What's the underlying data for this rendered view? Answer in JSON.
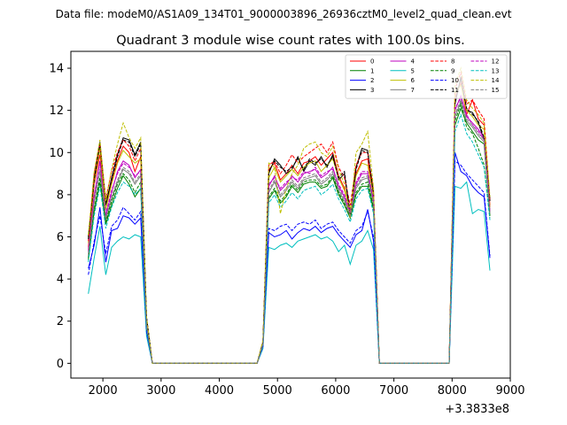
{
  "figure": {
    "suptitle": "Data file: modeM0/AS1A09_134T01_9000003896_26936cztM0_level2_quad_clean.evt"
  },
  "chart_data": {
    "type": "line",
    "title": "Quadrant 3 module wise count rates with 100.0s bins.",
    "xlabel": "",
    "ylabel": "",
    "x_offset_label": "+3.3833e8",
    "xlim": [
      1450,
      9000
    ],
    "ylim": [
      -0.7,
      14.8
    ],
    "xticks": [
      2000,
      3000,
      4000,
      5000,
      6000,
      7000,
      8000,
      9000
    ],
    "yticks": [
      0,
      2,
      4,
      6,
      8,
      10,
      12,
      14
    ],
    "grid": false,
    "legend_position": "top-right",
    "legend_columns": 4,
    "x": [
      1750,
      1850,
      1950,
      2050,
      2150,
      2250,
      2350,
      2450,
      2550,
      2650,
      2750,
      2850,
      2950,
      3050,
      3150,
      3250,
      3350,
      3450,
      3550,
      3650,
      3750,
      3850,
      3950,
      4050,
      4150,
      4250,
      4350,
      4450,
      4550,
      4650,
      4750,
      4850,
      4950,
      5050,
      5150,
      5250,
      5350,
      5450,
      5550,
      5650,
      5750,
      5850,
      5950,
      6050,
      6150,
      6250,
      6350,
      6450,
      6550,
      6650,
      6750,
      6850,
      6950,
      7050,
      7150,
      7250,
      7350,
      7450,
      7550,
      7650,
      7750,
      7850,
      7950,
      8050,
      8150,
      8250,
      8350,
      8450,
      8550,
      8650
    ],
    "series": [
      {
        "name": "0",
        "color": "#ff0000",
        "dash": false,
        "values": [
          5.5,
          8.5,
          9.9,
          7.5,
          8.6,
          9.6,
          10.3,
          10.0,
          9.1,
          9.8,
          2.0,
          0,
          0,
          0,
          0,
          0,
          0,
          0,
          0,
          0,
          0,
          0,
          0,
          0,
          0,
          0,
          0,
          0,
          0,
          0,
          1.0,
          9.2,
          9.5,
          8.7,
          9.0,
          9.4,
          9.0,
          9.5,
          9.6,
          9.8,
          9.4,
          9.7,
          10.0,
          8.9,
          8.3,
          7.2,
          9.0,
          9.6,
          9.7,
          7.9,
          0,
          0,
          0,
          0,
          0,
          0,
          0,
          0,
          0,
          0,
          0,
          0,
          0,
          12.6,
          13.3,
          11.8,
          12.5,
          11.6,
          11.3,
          7.5
        ]
      },
      {
        "name": "1",
        "color": "#008000",
        "dash": false,
        "values": [
          5.0,
          7.2,
          8.6,
          6.6,
          7.5,
          8.3,
          8.9,
          8.5,
          7.9,
          8.3,
          1.7,
          0,
          0,
          0,
          0,
          0,
          0,
          0,
          0,
          0,
          0,
          0,
          0,
          0,
          0,
          0,
          0,
          0,
          0,
          0,
          0.9,
          7.8,
          8.2,
          7.6,
          7.9,
          8.4,
          8.1,
          8.5,
          8.6,
          8.6,
          8.3,
          8.4,
          8.8,
          8.0,
          7.5,
          6.9,
          8.0,
          8.4,
          8.4,
          7.3,
          0,
          0,
          0,
          0,
          0,
          0,
          0,
          0,
          0,
          0,
          0,
          0,
          0,
          11.3,
          12.1,
          11.4,
          11.0,
          10.6,
          10.4,
          7.0
        ]
      },
      {
        "name": "2",
        "color": "#0000ff",
        "dash": false,
        "values": [
          4.5,
          5.6,
          7.4,
          4.8,
          6.3,
          6.4,
          7.0,
          6.9,
          6.6,
          6.9,
          1.5,
          0,
          0,
          0,
          0,
          0,
          0,
          0,
          0,
          0,
          0,
          0,
          0,
          0,
          0,
          0,
          0,
          0,
          0,
          0,
          0.8,
          6.2,
          6.0,
          6.1,
          6.3,
          5.9,
          6.2,
          6.4,
          6.3,
          6.5,
          6.2,
          6.4,
          6.5,
          6.1,
          5.8,
          5.5,
          6.1,
          6.3,
          7.3,
          5.8,
          0,
          0,
          0,
          0,
          0,
          0,
          0,
          0,
          0,
          0,
          0,
          0,
          0,
          10.0,
          9.1,
          8.9,
          8.4,
          8.1,
          7.9,
          5.0
        ]
      },
      {
        "name": "3",
        "color": "#000000",
        "dash": false,
        "values": [
          6.0,
          8.8,
          10.5,
          7.5,
          8.8,
          9.9,
          10.7,
          10.6,
          9.9,
          10.5,
          2.2,
          0,
          0,
          0,
          0,
          0,
          0,
          0,
          0,
          0,
          0,
          0,
          0,
          0,
          0,
          0,
          0,
          0,
          0,
          0,
          1.0,
          9.0,
          9.7,
          9.4,
          9.0,
          9.2,
          9.8,
          9.1,
          9.6,
          9.4,
          9.8,
          9.3,
          9.9,
          8.7,
          9.0,
          7.0,
          9.3,
          10.2,
          10.1,
          8.0,
          0,
          0,
          0,
          0,
          0,
          0,
          0,
          0,
          0,
          0,
          0,
          0,
          0,
          12.3,
          13.6,
          12.0,
          11.9,
          11.4,
          10.6,
          7.8
        ]
      },
      {
        "name": "4",
        "color": "#bf00bf",
        "dash": false,
        "values": [
          5.3,
          7.9,
          9.6,
          7.0,
          8.1,
          9.1,
          9.6,
          9.4,
          8.8,
          9.2,
          1.9,
          0,
          0,
          0,
          0,
          0,
          0,
          0,
          0,
          0,
          0,
          0,
          0,
          0,
          0,
          0,
          0,
          0,
          0,
          0,
          0.9,
          8.4,
          8.9,
          8.2,
          8.5,
          8.9,
          8.6,
          9.0,
          9.1,
          9.2,
          8.8,
          9.0,
          9.3,
          8.4,
          7.9,
          7.1,
          8.5,
          9.0,
          9.0,
          7.7,
          0,
          0,
          0,
          0,
          0,
          0,
          0,
          0,
          0,
          0,
          0,
          0,
          0,
          12.0,
          12.7,
          11.7,
          11.4,
          11.1,
          10.7,
          7.2
        ]
      },
      {
        "name": "5",
        "color": "#00bfbf",
        "dash": false,
        "values": [
          3.3,
          5.0,
          6.5,
          4.2,
          5.5,
          5.8,
          6.0,
          5.9,
          6.1,
          6.0,
          1.3,
          0,
          0,
          0,
          0,
          0,
          0,
          0,
          0,
          0,
          0,
          0,
          0,
          0,
          0,
          0,
          0,
          0,
          0,
          0,
          0.7,
          5.5,
          5.4,
          5.6,
          5.7,
          5.5,
          5.8,
          5.9,
          6.0,
          6.1,
          5.9,
          6.0,
          5.8,
          5.3,
          5.6,
          4.7,
          5.6,
          5.8,
          6.3,
          5.4,
          0,
          0,
          0,
          0,
          0,
          0,
          0,
          0,
          0,
          0,
          0,
          0,
          0,
          8.4,
          8.3,
          8.6,
          7.1,
          7.3,
          7.2,
          4.4
        ]
      },
      {
        "name": "6",
        "color": "#bfbf00",
        "dash": false,
        "values": [
          5.7,
          8.6,
          10.2,
          7.3,
          8.5,
          9.5,
          10.1,
          9.8,
          9.5,
          9.7,
          2.1,
          0,
          0,
          0,
          0,
          0,
          0,
          0,
          0,
          0,
          0,
          0,
          0,
          0,
          0,
          0,
          0,
          0,
          0,
          0,
          1.0,
          8.8,
          9.3,
          8.6,
          8.9,
          9.2,
          8.9,
          9.3,
          9.5,
          9.6,
          9.1,
          9.4,
          9.7,
          8.8,
          8.2,
          7.3,
          8.9,
          9.5,
          9.4,
          7.9,
          0,
          0,
          0,
          0,
          0,
          0,
          0,
          0,
          0,
          0,
          0,
          0,
          0,
          12.8,
          13.2,
          12.0,
          11.7,
          11.3,
          11.1,
          7.4
        ]
      },
      {
        "name": "7",
        "color": "#808080",
        "dash": false,
        "values": [
          5.1,
          7.6,
          9.1,
          6.8,
          7.8,
          8.6,
          9.2,
          9.0,
          8.5,
          8.9,
          1.8,
          0,
          0,
          0,
          0,
          0,
          0,
          0,
          0,
          0,
          0,
          0,
          0,
          0,
          0,
          0,
          0,
          0,
          0,
          0,
          0.9,
          8.1,
          8.6,
          7.9,
          8.2,
          8.6,
          8.3,
          8.7,
          8.8,
          8.9,
          8.5,
          8.7,
          9.0,
          8.2,
          7.7,
          7.0,
          8.3,
          8.7,
          8.8,
          7.5,
          0,
          0,
          0,
          0,
          0,
          0,
          0,
          0,
          0,
          0,
          0,
          0,
          0,
          11.7,
          12.4,
          11.5,
          11.2,
          10.8,
          10.5,
          7.1
        ]
      },
      {
        "name": "8",
        "color": "#ff0000",
        "dash": true,
        "values": [
          5.8,
          9.0,
          10.4,
          7.8,
          9.1,
          10.0,
          10.6,
          10.3,
          9.6,
          10.2,
          2.1,
          0,
          0,
          0,
          0,
          0,
          0,
          0,
          0,
          0,
          0,
          0,
          0,
          0,
          0,
          0,
          0,
          0,
          0,
          0,
          1.0,
          9.4,
          9.6,
          9.0,
          9.4,
          9.9,
          9.5,
          9.8,
          10.0,
          10.2,
          10.4,
          10.0,
          10.5,
          9.3,
          8.8,
          7.5,
          9.4,
          10.0,
          10.0,
          8.2,
          0,
          0,
          0,
          0,
          0,
          0,
          0,
          0,
          0,
          0,
          0,
          0,
          0,
          13.0,
          13.8,
          12.3,
          12.5,
          12.0,
          11.6,
          7.7
        ]
      },
      {
        "name": "9",
        "color": "#008000",
        "dash": true,
        "values": [
          4.9,
          7.3,
          8.8,
          6.7,
          7.7,
          8.5,
          9.0,
          8.7,
          8.1,
          8.6,
          1.7,
          0,
          0,
          0,
          0,
          0,
          0,
          0,
          0,
          0,
          0,
          0,
          0,
          0,
          0,
          0,
          0,
          0,
          0,
          0,
          0.9,
          7.9,
          8.3,
          7.7,
          8.0,
          8.5,
          8.2,
          8.6,
          8.7,
          8.7,
          8.4,
          8.5,
          8.9,
          8.1,
          7.6,
          6.9,
          8.1,
          8.5,
          8.6,
          7.4,
          0,
          0,
          0,
          0,
          0,
          0,
          0,
          0,
          0,
          0,
          0,
          0,
          0,
          11.5,
          12.3,
          11.2,
          10.9,
          10.2,
          9.4,
          6.9
        ]
      },
      {
        "name": "10",
        "color": "#0000ff",
        "dash": true,
        "values": [
          4.2,
          5.8,
          7.0,
          5.2,
          6.5,
          6.8,
          7.4,
          7.1,
          6.8,
          7.2,
          1.5,
          0,
          0,
          0,
          0,
          0,
          0,
          0,
          0,
          0,
          0,
          0,
          0,
          0,
          0,
          0,
          0,
          0,
          0,
          0,
          0.8,
          6.4,
          6.3,
          6.5,
          6.6,
          6.3,
          6.6,
          6.7,
          6.6,
          6.8,
          6.4,
          6.6,
          6.7,
          6.3,
          6.0,
          5.7,
          6.3,
          6.5,
          7.2,
          6.0,
          0,
          0,
          0,
          0,
          0,
          0,
          0,
          0,
          0,
          0,
          0,
          0,
          0,
          9.6,
          9.4,
          9.0,
          8.7,
          8.4,
          8.1,
          5.1
        ]
      },
      {
        "name": "11",
        "color": "#000000",
        "dash": true,
        "values": [
          5.9,
          8.7,
          10.4,
          7.6,
          8.7,
          9.8,
          10.6,
          10.5,
          9.8,
          10.4,
          2.2,
          0,
          0,
          0,
          0,
          0,
          0,
          0,
          0,
          0,
          0,
          0,
          0,
          0,
          0,
          0,
          0,
          0,
          0,
          0,
          1.0,
          9.1,
          9.6,
          9.3,
          9.1,
          9.3,
          9.7,
          9.2,
          9.7,
          9.5,
          9.7,
          9.4,
          9.8,
          8.8,
          9.1,
          7.1,
          9.2,
          10.1,
          10.0,
          8.1,
          0,
          0,
          0,
          0,
          0,
          0,
          0,
          0,
          0,
          0,
          0,
          0,
          0,
          12.4,
          13.5,
          12.1,
          11.8,
          11.5,
          10.7,
          7.7
        ]
      },
      {
        "name": "12",
        "color": "#bf00bf",
        "dash": true,
        "values": [
          5.4,
          8.0,
          9.5,
          7.1,
          8.2,
          9.0,
          9.5,
          9.3,
          8.9,
          9.1,
          1.9,
          0,
          0,
          0,
          0,
          0,
          0,
          0,
          0,
          0,
          0,
          0,
          0,
          0,
          0,
          0,
          0,
          0,
          0,
          0,
          0.9,
          8.5,
          8.8,
          8.3,
          8.6,
          8.8,
          8.7,
          9.1,
          9.0,
          9.3,
          8.9,
          9.1,
          9.2,
          8.5,
          8.0,
          7.2,
          8.6,
          9.1,
          9.1,
          7.8,
          0,
          0,
          0,
          0,
          0,
          0,
          0,
          0,
          0,
          0,
          0,
          0,
          0,
          12.1,
          12.6,
          11.8,
          11.3,
          11.0,
          10.6,
          7.3
        ]
      },
      {
        "name": "13",
        "color": "#00bfbf",
        "dash": true,
        "values": [
          4.8,
          7.0,
          8.4,
          6.4,
          7.4,
          8.1,
          8.6,
          8.4,
          8.0,
          8.3,
          1.7,
          0,
          0,
          0,
          0,
          0,
          0,
          0,
          0,
          0,
          0,
          0,
          0,
          0,
          0,
          0,
          0,
          0,
          0,
          0,
          0.9,
          7.6,
          8.0,
          7.4,
          7.7,
          8.1,
          7.8,
          8.2,
          8.3,
          8.4,
          8.0,
          8.2,
          8.5,
          7.8,
          7.3,
          6.7,
          7.8,
          8.2,
          8.3,
          7.1,
          0,
          0,
          0,
          0,
          0,
          0,
          0,
          0,
          0,
          0,
          0,
          0,
          0,
          11.0,
          11.8,
          10.9,
          10.5,
          9.9,
          9.3,
          6.8
        ]
      },
      {
        "name": "14",
        "color": "#bfbf00",
        "dash": true,
        "values": [
          6.1,
          9.1,
          10.6,
          7.7,
          9.2,
          10.4,
          11.4,
          10.7,
          10.2,
          10.7,
          2.2,
          0,
          0,
          0,
          0,
          0,
          0,
          0,
          0,
          0,
          0,
          0,
          0,
          0,
          0,
          0,
          0,
          0,
          0,
          0,
          1.1,
          9.5,
          9.3,
          7.1,
          8.3,
          9.0,
          9.4,
          10.2,
          10.4,
          10.5,
          10.0,
          9.8,
          10.3,
          9.2,
          8.5,
          6.9,
          10.0,
          10.4,
          11.0,
          8.3,
          0,
          0,
          0,
          0,
          0,
          0,
          0,
          0,
          0,
          0,
          0,
          0,
          0,
          13.2,
          14.0,
          12.5,
          12.1,
          11.8,
          11.4,
          7.9
        ]
      },
      {
        "name": "15",
        "color": "#808080",
        "dash": true,
        "values": [
          5.2,
          7.7,
          9.2,
          6.9,
          7.9,
          8.7,
          9.3,
          9.1,
          8.6,
          9.0,
          1.8,
          0,
          0,
          0,
          0,
          0,
          0,
          0,
          0,
          0,
          0,
          0,
          0,
          0,
          0,
          0,
          0,
          0,
          0,
          0,
          0.9,
          8.2,
          8.7,
          8.0,
          8.3,
          8.7,
          8.4,
          8.8,
          8.9,
          9.0,
          8.6,
          8.8,
          9.1,
          8.3,
          7.8,
          7.0,
          8.4,
          8.8,
          8.9,
          7.6,
          0,
          0,
          0,
          0,
          0,
          0,
          0,
          0,
          0,
          0,
          0,
          0,
          0,
          11.8,
          12.5,
          11.6,
          11.3,
          10.9,
          10.6,
          7.2
        ]
      }
    ]
  }
}
